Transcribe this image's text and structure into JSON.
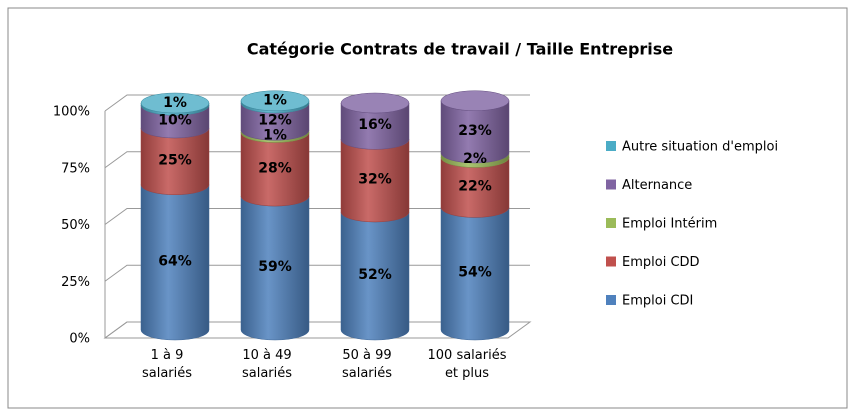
{
  "chart_data": {
    "type": "bar",
    "stacked": true,
    "title": "Catégorie Contrats de travail / Taille Entreprise",
    "categories": [
      "1 à 9\nsalariés",
      "10 à 49\nsalariés",
      "50 à 99\nsalariés",
      "100 salariés\net plus"
    ],
    "series": [
      {
        "name": "Emploi CDI",
        "color": "#4f81bd",
        "values": [
          64,
          59,
          52,
          54
        ],
        "value_labels": [
          "64%",
          "59%",
          "52%",
          "54%"
        ]
      },
      {
        "name": "Emploi CDD",
        "color": "#c0504d",
        "values": [
          25,
          28,
          32,
          22
        ],
        "value_labels": [
          "25%",
          "28%",
          "32%",
          "22%"
        ]
      },
      {
        "name": "Emploi Intérim",
        "color": "#9bbb59",
        "values": [
          null,
          1,
          null,
          2
        ],
        "value_labels": [
          null,
          "1%",
          null,
          "2%"
        ]
      },
      {
        "name": "Alternance",
        "color": "#8064a2",
        "values": [
          10,
          12,
          16,
          23
        ],
        "value_labels": [
          "10%",
          "12%",
          "16%",
          "23%"
        ]
      },
      {
        "name": "Autre situation d'emploi",
        "color": "#4bacc6",
        "values": [
          1,
          1,
          null,
          null
        ],
        "value_labels": [
          "1%",
          "1%",
          null,
          null
        ]
      }
    ],
    "ylim": [
      0,
      100
    ],
    "yticks": [
      {
        "value": 0,
        "label": "0%"
      },
      {
        "value": 25,
        "label": "25%"
      },
      {
        "value": 50,
        "label": "50%"
      },
      {
        "value": 75,
        "label": "75%"
      },
      {
        "value": 100,
        "label": "100%"
      }
    ],
    "grid": true,
    "legend": "right"
  }
}
